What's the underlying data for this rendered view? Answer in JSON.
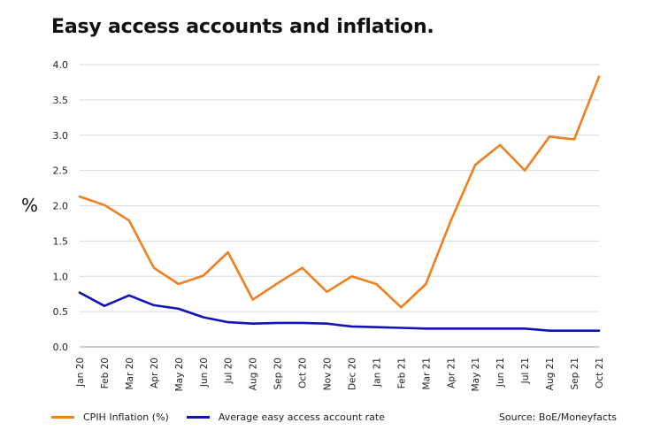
{
  "chart_data": {
    "type": "line",
    "title": "Easy access accounts and inflation.",
    "ylabel": "%",
    "xlabel": "",
    "ylim": [
      0,
      4
    ],
    "yticks": [
      "0.0",
      "0.5",
      "1.0",
      "1.5",
      "2.0",
      "2.5",
      "3.0",
      "3.5",
      "4.0"
    ],
    "categories": [
      "Jan 20",
      "Feb 20",
      "Mar 20",
      "Apr 20",
      "May 20",
      "Jun 20",
      "Jul 20",
      "Aug 20",
      "Sep 20",
      "Oct 20",
      "Nov 20",
      "Dec 20",
      "Jan 21",
      "Feb 21",
      "Mar 21",
      "Apr 21",
      "May 21",
      "Jun 21",
      "Jul 21",
      "Aug 21",
      "Sep 21",
      "Oct 21"
    ],
    "series": [
      {
        "name": "CPIH Inflation (%)",
        "color": "#f07f1f",
        "values": [
          2.13,
          2.01,
          1.79,
          1.12,
          0.89,
          1.01,
          1.34,
          0.67,
          0.9,
          1.12,
          0.78,
          1.0,
          0.89,
          0.56,
          0.89,
          1.78,
          2.58,
          2.86,
          2.5,
          2.98,
          2.94,
          3.83
        ]
      },
      {
        "name": "Average easy access account rate",
        "color": "#1212b5",
        "values": [
          0.77,
          0.58,
          0.73,
          0.59,
          0.54,
          0.42,
          0.35,
          0.33,
          0.34,
          0.34,
          0.33,
          0.29,
          0.28,
          0.27,
          0.26,
          0.26,
          0.26,
          0.26,
          0.26,
          0.23,
          0.23,
          0.23
        ]
      }
    ],
    "grid": "horizontal",
    "legend": "bottom-left",
    "source": "Source: BoE/Moneyfacts"
  }
}
